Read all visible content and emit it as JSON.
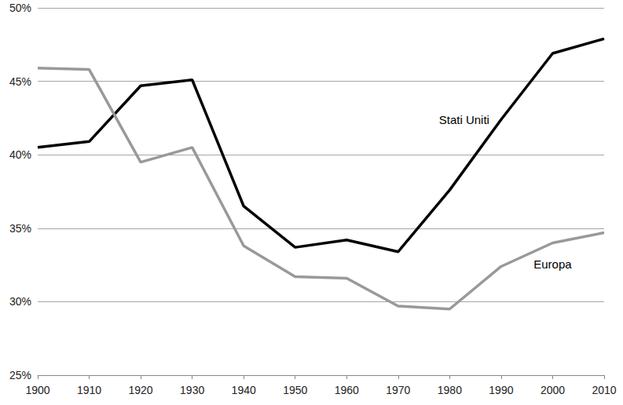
{
  "chart_data": {
    "type": "line",
    "categories": [
      "1900",
      "1910",
      "1920",
      "1930",
      "1940",
      "1950",
      "1960",
      "1970",
      "1980",
      "1990",
      "2000",
      "2010"
    ],
    "series": [
      {
        "name": "Stati Uniti",
        "color": "#000000",
        "values": [
          40.5,
          40.9,
          44.7,
          45.1,
          36.5,
          33.7,
          34.2,
          33.4,
          37.6,
          42.4,
          46.9,
          47.9
        ]
      },
      {
        "name": "Europa",
        "color": "#999999",
        "values": [
          45.9,
          45.8,
          39.5,
          40.5,
          33.8,
          31.7,
          31.6,
          29.7,
          29.5,
          32.4,
          34.0,
          34.7
        ]
      }
    ],
    "ylim": [
      25,
      50
    ],
    "yticks": [
      {
        "value": 25,
        "label": "25%"
      },
      {
        "value": 30,
        "label": "30%"
      },
      {
        "value": 35,
        "label": "35%"
      },
      {
        "value": 40,
        "label": "40%"
      },
      {
        "value": 45,
        "label": "45%"
      },
      {
        "value": 50,
        "label": "50%"
      }
    ],
    "grid": true
  }
}
